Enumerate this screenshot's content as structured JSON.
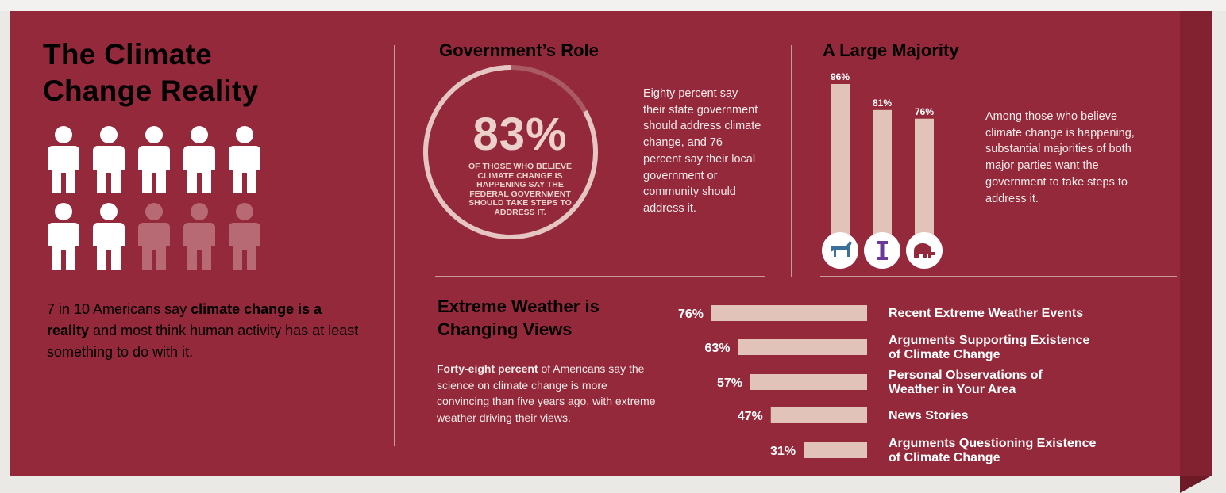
{
  "colors": {
    "panel": "#93293a",
    "bar": "#e2c3b9",
    "person_full": "#ffffff",
    "person_faded": "#b86a74",
    "democrat": "#3d6f9b",
    "independent": "#6a3a9a",
    "republican": "#93293a"
  },
  "reality": {
    "title_line1": "The Climate",
    "title_line2": "Change Reality",
    "people_total": 10,
    "people_highlighted": 7,
    "text_part1": "7 in 10 Americans say ",
    "text_bold": "climate change is a reality",
    "text_part2": " and most think human activity has at least something to do with it."
  },
  "government": {
    "title": "Government’s Role",
    "percent_label": "83%",
    "percent_value": 83,
    "caption": "OF THOSE WHO BELIEVE CLIMATE CHANGE IS HAPPENING SAY THE FEDERAL GOVERNMENT SHOULD TAKE STEPS TO ADDRESS IT.",
    "side_text": "Eighty percent say their state government should address climate change, and 76 percent say their local government or community should address it."
  },
  "majority": {
    "title": "A Large Majority",
    "side_text": "Among those who believe climate change is happening, substantial majorities of both major parties want the government to take steps to address it."
  },
  "weather": {
    "title_line1": "Extreme Weather is",
    "title_line2": "Changing Views",
    "text_bold": "Forty-eight percent",
    "text_rest": " of Americans say the science on climate change is more convincing than five years ago, with extreme weather driving their views."
  },
  "chart_data": [
    {
      "type": "bar",
      "orientation": "vertical",
      "categories": [
        "democrat-icon",
        "independent-icon",
        "republican-icon"
      ],
      "values": [
        96,
        81,
        76
      ],
      "value_labels": [
        "96%",
        "81%",
        "76%"
      ],
      "ylim": [
        0,
        100
      ]
    },
    {
      "type": "bar",
      "orientation": "horizontal",
      "categories": [
        "Recent Extreme Weather Events",
        "Arguments Supporting Existence of Climate Change",
        "Personal Observations of Weather in Your Area",
        "News Stories",
        "Arguments Questioning Existence of Climate Change"
      ],
      "category_lines": [
        [
          "Recent Extreme Weather Events"
        ],
        [
          "Arguments Supporting Existence",
          "of Climate Change"
        ],
        [
          "Personal Observations of",
          "Weather in Your Area"
        ],
        [
          "News Stories"
        ],
        [
          "Arguments Questioning Existence",
          "of Climate Change"
        ]
      ],
      "values": [
        76,
        63,
        57,
        47,
        31
      ],
      "value_labels": [
        "76%",
        "63%",
        "57%",
        "47%",
        "31%"
      ],
      "xlim": [
        0,
        76
      ]
    }
  ]
}
